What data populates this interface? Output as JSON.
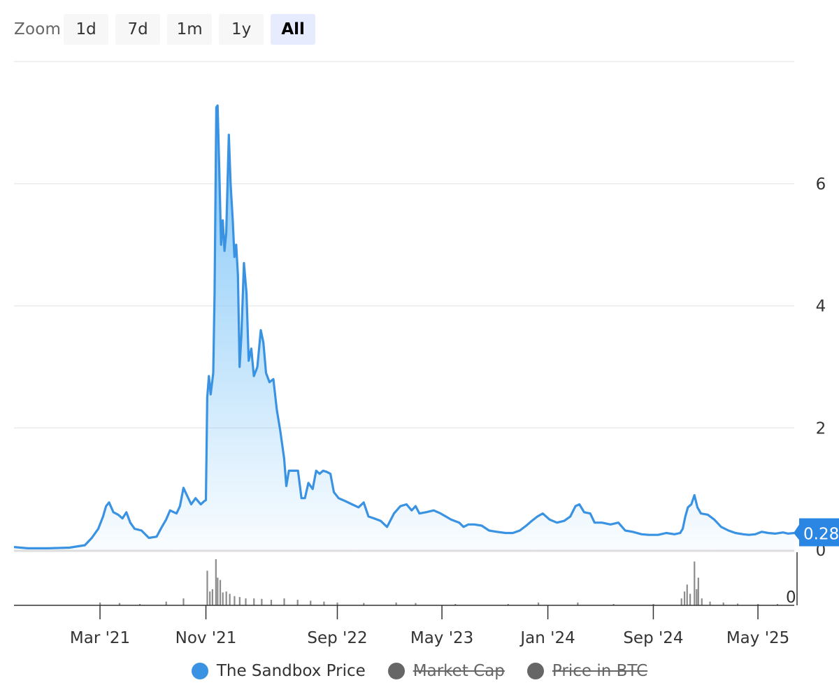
{
  "zoom": {
    "label": "Zoom",
    "buttons": [
      {
        "label": "1d",
        "active": false
      },
      {
        "label": "7d",
        "active": false
      },
      {
        "label": "1m",
        "active": false
      },
      {
        "label": "1y",
        "active": false
      },
      {
        "label": "All",
        "active": true
      }
    ]
  },
  "legend": [
    {
      "label": "The Sandbox Price",
      "color": "#3a93e2",
      "visible": true
    },
    {
      "label": "Market Cap",
      "color": "#666666",
      "visible": false
    },
    {
      "label": "Price in BTC",
      "color": "#666666",
      "visible": false
    }
  ],
  "chart_data": {
    "type": "area",
    "title": "",
    "xlabel": "",
    "ylabel": "",
    "x_range": [
      "2020-08-14",
      "2025-07-24"
    ],
    "ylim": [
      0,
      8
    ],
    "y_ticks": [
      {
        "value": 0,
        "label": "0"
      },
      {
        "value": 2,
        "label": "2"
      },
      {
        "value": 4,
        "label": "4"
      },
      {
        "value": 6,
        "label": "6"
      }
    ],
    "x_ticks": [
      {
        "date": "2021-03-01",
        "label": "Mar '21"
      },
      {
        "date": "2021-11-01",
        "label": "Nov '21"
      },
      {
        "date": "2022-09-01",
        "label": "Sep '22"
      },
      {
        "date": "2023-05-01",
        "label": "May '23"
      },
      {
        "date": "2024-01-01",
        "label": "Jan '24"
      },
      {
        "date": "2024-09-01",
        "label": "Sep '24"
      },
      {
        "date": "2025-05-01",
        "label": "May '25"
      }
    ],
    "grid": true,
    "legend_position": "bottom",
    "current_value_label": "0.28",
    "series": [
      {
        "name": "The Sandbox Price",
        "color": "#3a93e2",
        "points": [
          [
            "2020-08-14",
            0.05
          ],
          [
            "2020-09-15",
            0.03
          ],
          [
            "2020-11-01",
            0.03
          ],
          [
            "2020-12-20",
            0.04
          ],
          [
            "2021-01-25",
            0.08
          ],
          [
            "2021-02-10",
            0.2
          ],
          [
            "2021-02-25",
            0.35
          ],
          [
            "2021-03-08",
            0.55
          ],
          [
            "2021-03-15",
            0.72
          ],
          [
            "2021-03-22",
            0.78
          ],
          [
            "2021-04-01",
            0.62
          ],
          [
            "2021-04-12",
            0.58
          ],
          [
            "2021-04-22",
            0.52
          ],
          [
            "2021-05-01",
            0.62
          ],
          [
            "2021-05-10",
            0.45
          ],
          [
            "2021-05-20",
            0.35
          ],
          [
            "2021-06-05",
            0.32
          ],
          [
            "2021-06-22",
            0.2
          ],
          [
            "2021-07-10",
            0.22
          ],
          [
            "2021-07-22",
            0.38
          ],
          [
            "2021-08-01",
            0.5
          ],
          [
            "2021-08-10",
            0.65
          ],
          [
            "2021-08-25",
            0.6
          ],
          [
            "2021-09-02",
            0.72
          ],
          [
            "2021-09-10",
            1.02
          ],
          [
            "2021-09-18",
            0.9
          ],
          [
            "2021-09-28",
            0.75
          ],
          [
            "2021-10-08",
            0.85
          ],
          [
            "2021-10-20",
            0.75
          ],
          [
            "2021-10-28",
            0.8
          ],
          [
            "2021-11-01",
            0.82
          ],
          [
            "2021-11-04",
            2.5
          ],
          [
            "2021-11-08",
            2.85
          ],
          [
            "2021-11-12",
            2.55
          ],
          [
            "2021-11-18",
            2.9
          ],
          [
            "2021-11-21",
            4.2
          ],
          [
            "2021-11-25",
            7.25
          ],
          [
            "2021-11-28",
            7.28
          ],
          [
            "2021-12-02",
            6.2
          ],
          [
            "2021-12-06",
            5.0
          ],
          [
            "2021-12-10",
            5.4
          ],
          [
            "2021-12-14",
            4.9
          ],
          [
            "2021-12-18",
            5.2
          ],
          [
            "2021-12-24",
            6.8
          ],
          [
            "2021-12-28",
            6.0
          ],
          [
            "2022-01-02",
            5.4
          ],
          [
            "2022-01-06",
            4.8
          ],
          [
            "2022-01-10",
            5.0
          ],
          [
            "2022-01-14",
            4.5
          ],
          [
            "2022-01-18",
            3.0
          ],
          [
            "2022-01-22",
            3.5
          ],
          [
            "2022-01-28",
            4.7
          ],
          [
            "2022-02-03",
            4.2
          ],
          [
            "2022-02-08",
            3.1
          ],
          [
            "2022-02-14",
            3.3
          ],
          [
            "2022-02-20",
            2.85
          ],
          [
            "2022-02-28",
            3.0
          ],
          [
            "2022-03-08",
            3.6
          ],
          [
            "2022-03-14",
            3.4
          ],
          [
            "2022-03-20",
            2.9
          ],
          [
            "2022-03-28",
            2.75
          ],
          [
            "2022-04-06",
            2.8
          ],
          [
            "2022-04-14",
            2.3
          ],
          [
            "2022-04-22",
            1.95
          ],
          [
            "2022-05-01",
            1.5
          ],
          [
            "2022-05-06",
            1.05
          ],
          [
            "2022-05-12",
            1.3
          ],
          [
            "2022-05-22",
            1.3
          ],
          [
            "2022-06-02",
            1.3
          ],
          [
            "2022-06-10",
            0.85
          ],
          [
            "2022-06-18",
            0.85
          ],
          [
            "2022-06-26",
            1.1
          ],
          [
            "2022-07-06",
            1.0
          ],
          [
            "2022-07-14",
            1.3
          ],
          [
            "2022-07-22",
            1.25
          ],
          [
            "2022-07-30",
            1.3
          ],
          [
            "2022-08-08",
            1.28
          ],
          [
            "2022-08-16",
            1.25
          ],
          [
            "2022-08-24",
            0.95
          ],
          [
            "2022-09-04",
            0.85
          ],
          [
            "2022-09-20",
            0.8
          ],
          [
            "2022-10-05",
            0.75
          ],
          [
            "2022-10-20",
            0.7
          ],
          [
            "2022-11-01",
            0.78
          ],
          [
            "2022-11-12",
            0.55
          ],
          [
            "2022-11-25",
            0.52
          ],
          [
            "2022-12-10",
            0.48
          ],
          [
            "2022-12-25",
            0.38
          ],
          [
            "2023-01-10",
            0.6
          ],
          [
            "2023-01-25",
            0.72
          ],
          [
            "2023-02-08",
            0.75
          ],
          [
            "2023-02-20",
            0.65
          ],
          [
            "2023-03-01",
            0.72
          ],
          [
            "2023-03-10",
            0.6
          ],
          [
            "2023-03-25",
            0.62
          ],
          [
            "2023-04-12",
            0.65
          ],
          [
            "2023-04-28",
            0.6
          ],
          [
            "2023-05-10",
            0.55
          ],
          [
            "2023-05-22",
            0.5
          ],
          [
            "2023-06-10",
            0.45
          ],
          [
            "2023-06-20",
            0.38
          ],
          [
            "2023-07-01",
            0.42
          ],
          [
            "2023-07-15",
            0.42
          ],
          [
            "2023-08-01",
            0.4
          ],
          [
            "2023-08-18",
            0.32
          ],
          [
            "2023-09-05",
            0.3
          ],
          [
            "2023-09-25",
            0.28
          ],
          [
            "2023-10-12",
            0.28
          ],
          [
            "2023-10-28",
            0.32
          ],
          [
            "2023-11-12",
            0.4
          ],
          [
            "2023-11-25",
            0.48
          ],
          [
            "2023-12-08",
            0.55
          ],
          [
            "2023-12-20",
            0.6
          ],
          [
            "2024-01-05",
            0.5
          ],
          [
            "2024-01-22",
            0.45
          ],
          [
            "2024-02-08",
            0.48
          ],
          [
            "2024-02-22",
            0.55
          ],
          [
            "2024-03-05",
            0.72
          ],
          [
            "2024-03-14",
            0.75
          ],
          [
            "2024-03-25",
            0.62
          ],
          [
            "2024-04-08",
            0.6
          ],
          [
            "2024-04-18",
            0.45
          ],
          [
            "2024-05-05",
            0.45
          ],
          [
            "2024-05-25",
            0.42
          ],
          [
            "2024-06-12",
            0.45
          ],
          [
            "2024-06-28",
            0.32
          ],
          [
            "2024-07-15",
            0.3
          ],
          [
            "2024-08-05",
            0.26
          ],
          [
            "2024-08-22",
            0.25
          ],
          [
            "2024-09-12",
            0.25
          ],
          [
            "2024-10-01",
            0.28
          ],
          [
            "2024-10-20",
            0.26
          ],
          [
            "2024-11-02",
            0.28
          ],
          [
            "2024-11-08",
            0.35
          ],
          [
            "2024-11-14",
            0.55
          ],
          [
            "2024-11-20",
            0.7
          ],
          [
            "2024-11-28",
            0.75
          ],
          [
            "2024-12-05",
            0.9
          ],
          [
            "2024-12-12",
            0.7
          ],
          [
            "2024-12-20",
            0.6
          ],
          [
            "2025-01-05",
            0.58
          ],
          [
            "2025-01-20",
            0.5
          ],
          [
            "2025-02-05",
            0.38
          ],
          [
            "2025-02-22",
            0.32
          ],
          [
            "2025-03-10",
            0.28
          ],
          [
            "2025-03-28",
            0.26
          ],
          [
            "2025-04-10",
            0.25
          ],
          [
            "2025-04-25",
            0.26
          ],
          [
            "2025-05-10",
            0.3
          ],
          [
            "2025-05-25",
            0.28
          ],
          [
            "2025-06-10",
            0.27
          ],
          [
            "2025-06-28",
            0.29
          ],
          [
            "2025-07-10",
            0.27
          ],
          [
            "2025-07-24",
            0.28
          ]
        ]
      }
    ],
    "volume": {
      "y_tick_label": "0",
      "color": "#666666",
      "bars": [
        [
          "2021-03-01",
          0.06
        ],
        [
          "2021-04-15",
          0.05
        ],
        [
          "2021-06-01",
          0.03
        ],
        [
          "2021-08-01",
          0.08
        ],
        [
          "2021-09-10",
          0.15
        ],
        [
          "2021-11-04",
          0.75
        ],
        [
          "2021-11-10",
          0.3
        ],
        [
          "2021-11-16",
          0.35
        ],
        [
          "2021-11-24",
          1.0
        ],
        [
          "2021-11-28",
          0.6
        ],
        [
          "2021-12-04",
          0.55
        ],
        [
          "2021-12-10",
          0.28
        ],
        [
          "2021-12-18",
          0.3
        ],
        [
          "2021-12-26",
          0.25
        ],
        [
          "2022-01-06",
          0.2
        ],
        [
          "2022-01-18",
          0.18
        ],
        [
          "2022-02-01",
          0.15
        ],
        [
          "2022-02-20",
          0.15
        ],
        [
          "2022-03-10",
          0.14
        ],
        [
          "2022-04-01",
          0.12
        ],
        [
          "2022-05-01",
          0.15
        ],
        [
          "2022-06-01",
          0.12
        ],
        [
          "2022-07-01",
          0.1
        ],
        [
          "2022-08-01",
          0.08
        ],
        [
          "2022-09-01",
          0.06
        ],
        [
          "2022-11-01",
          0.05
        ],
        [
          "2023-01-15",
          0.06
        ],
        [
          "2023-03-01",
          0.05
        ],
        [
          "2023-06-01",
          0.03
        ],
        [
          "2023-10-01",
          0.03
        ],
        [
          "2023-12-10",
          0.06
        ],
        [
          "2024-03-10",
          0.06
        ],
        [
          "2024-06-01",
          0.03
        ],
        [
          "2024-09-01",
          0.03
        ],
        [
          "2024-11-05",
          0.15
        ],
        [
          "2024-11-12",
          0.3
        ],
        [
          "2024-11-18",
          0.45
        ],
        [
          "2024-11-25",
          0.25
        ],
        [
          "2024-12-05",
          0.95
        ],
        [
          "2024-12-10",
          0.35
        ],
        [
          "2024-12-14",
          0.6
        ],
        [
          "2024-12-22",
          0.15
        ],
        [
          "2025-01-10",
          0.08
        ],
        [
          "2025-02-10",
          0.06
        ],
        [
          "2025-03-15",
          0.04
        ],
        [
          "2025-05-01",
          0.03
        ],
        [
          "2025-06-15",
          0.03
        ]
      ]
    }
  }
}
